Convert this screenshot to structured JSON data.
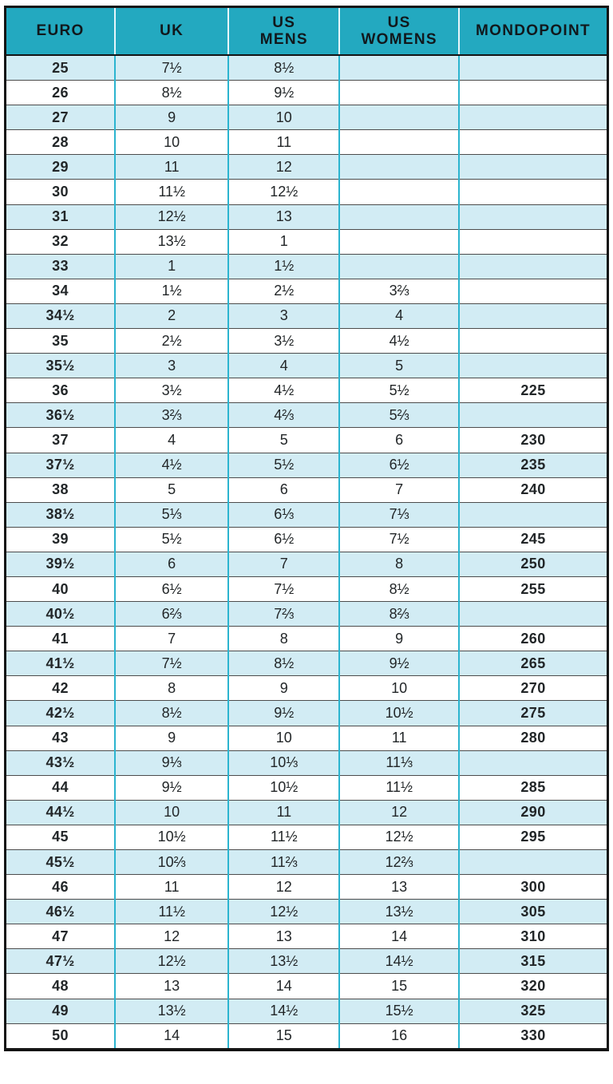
{
  "colors": {
    "header_bg": "#23a9c0",
    "header_text": "#11181c",
    "header_divider": "#e7f6fa",
    "stripe_bg": "#d2ecf4",
    "white_bg": "#ffffff",
    "column_border": "#2bb4cf",
    "row_border": "#4c4c4c",
    "outer_border": "#141414",
    "text": "#222628"
  },
  "chart_data": {
    "type": "table",
    "columns": [
      {
        "key": "euro",
        "label": "EURO",
        "bold_values": true
      },
      {
        "key": "uk",
        "label": "UK",
        "bold_values": false
      },
      {
        "key": "us_mens",
        "label": "US\nMENS",
        "bold_values": false
      },
      {
        "key": "us_womens",
        "label": "US\nWOMENS",
        "bold_values": false
      },
      {
        "key": "mondopoint",
        "label": "MONDOPOINT",
        "bold_values": true
      }
    ],
    "column_width_percents": [
      18.1,
      18.9,
      18.5,
      19.9,
      24.6
    ],
    "layout": {
      "stripe_first_row": true,
      "unshaded_right_columns_row_count": 9,
      "unshaded_right_columns_start_index": 3
    },
    "rows": [
      [
        "25",
        "7½",
        "8½",
        "",
        ""
      ],
      [
        "26",
        "8½",
        "9½",
        "",
        ""
      ],
      [
        "27",
        "9",
        "10",
        "",
        ""
      ],
      [
        "28",
        "10",
        "11",
        "",
        ""
      ],
      [
        "29",
        "11",
        "12",
        "",
        ""
      ],
      [
        "30",
        "11½",
        "12½",
        "",
        ""
      ],
      [
        "31",
        "12½",
        "13",
        "",
        ""
      ],
      [
        "32",
        "13½",
        "1",
        "",
        ""
      ],
      [
        "33",
        "1",
        "1½",
        "",
        ""
      ],
      [
        "34",
        "1½",
        "2½",
        "3⅔",
        ""
      ],
      [
        "34½",
        "2",
        "3",
        "4",
        ""
      ],
      [
        "35",
        "2½",
        "3½",
        "4½",
        ""
      ],
      [
        "35½",
        "3",
        "4",
        "5",
        ""
      ],
      [
        "36",
        "3½",
        "4½",
        "5½",
        "225"
      ],
      [
        "36½",
        "3⅔",
        "4⅔",
        "5⅔",
        ""
      ],
      [
        "37",
        "4",
        "5",
        "6",
        "230"
      ],
      [
        "37½",
        "4½",
        "5½",
        "6½",
        "235"
      ],
      [
        "38",
        "5",
        "6",
        "7",
        "240"
      ],
      [
        "38½",
        "5⅓",
        "6⅓",
        "7⅓",
        ""
      ],
      [
        "39",
        "5½",
        "6½",
        "7½",
        "245"
      ],
      [
        "39½",
        "6",
        "7",
        "8",
        "250"
      ],
      [
        "40",
        "6½",
        "7½",
        "8½",
        "255"
      ],
      [
        "40½",
        "6⅔",
        "7⅔",
        "8⅔",
        ""
      ],
      [
        "41",
        "7",
        "8",
        "9",
        "260"
      ],
      [
        "41½",
        "7½",
        "8½",
        "9½",
        "265"
      ],
      [
        "42",
        "8",
        "9",
        "10",
        "270"
      ],
      [
        "42½",
        "8½",
        "9½",
        "10½",
        "275"
      ],
      [
        "43",
        "9",
        "10",
        "11",
        "280"
      ],
      [
        "43½",
        "9⅓",
        "10⅓",
        "11⅓",
        ""
      ],
      [
        "44",
        "9½",
        "10½",
        "11½",
        "285"
      ],
      [
        "44½",
        "10",
        "11",
        "12",
        "290"
      ],
      [
        "45",
        "10½",
        "11½",
        "12½",
        "295"
      ],
      [
        "45½",
        "10⅔",
        "11⅔",
        "12⅔",
        ""
      ],
      [
        "46",
        "11",
        "12",
        "13",
        "300"
      ],
      [
        "46½",
        "11½",
        "12½",
        "13½",
        "305"
      ],
      [
        "47",
        "12",
        "13",
        "14",
        "310"
      ],
      [
        "47½",
        "12½",
        "13½",
        "14½",
        "315"
      ],
      [
        "48",
        "13",
        "14",
        "15",
        "320"
      ],
      [
        "49",
        "13½",
        "14½",
        "15½",
        "325"
      ],
      [
        "50",
        "14",
        "15",
        "16",
        "330"
      ]
    ]
  }
}
